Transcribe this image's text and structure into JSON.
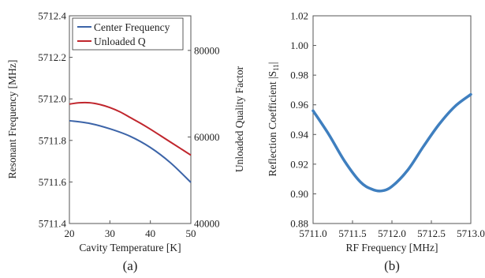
{
  "chart_data": [
    {
      "type": "line",
      "caption": "(a)",
      "xlabel": "Cavity Temperature [K]",
      "ylabel": "Resonant Frequency [MHz]",
      "y2label": "Unloaded Quality Factor",
      "xlim": [
        20,
        50
      ],
      "ylim": [
        5711.4,
        5712.4
      ],
      "y2lim": [
        40000,
        88000
      ],
      "x_ticks": [
        "20",
        "30",
        "40",
        "50"
      ],
      "y_ticks": [
        "5711.4",
        "5711.6",
        "5711.8",
        "5712.0",
        "5712.2",
        "5712.4"
      ],
      "y2_ticks": [
        "40000",
        "60000",
        "80000"
      ],
      "grid": false,
      "legend": "top-left",
      "series": [
        {
          "name": "Center Frequency",
          "axis": "left",
          "color": "#3c64a8",
          "x": [
            20,
            25,
            30,
            35,
            40,
            45,
            50
          ],
          "y": [
            5711.895,
            5711.882,
            5711.856,
            5711.82,
            5711.766,
            5711.692,
            5711.598
          ]
        },
        {
          "name": "Unloaded Q",
          "axis": "right",
          "color": "#c0262d",
          "x": [
            20,
            22.5,
            25,
            27.5,
            30,
            32.5,
            35,
            37.5,
            40,
            42.5,
            45,
            47.5,
            50
          ],
          "y": [
            67600,
            67900,
            67900,
            67500,
            66800,
            65800,
            64500,
            63200,
            61800,
            60300,
            58800,
            57300,
            55800
          ]
        }
      ]
    },
    {
      "type": "line",
      "caption": "(b)",
      "xlabel": "RF Frequency [MHz]",
      "ylabel": "Reflection Coefficient |S11|",
      "xlim": [
        5711.0,
        5713.0
      ],
      "ylim": [
        0.88,
        1.02
      ],
      "x_ticks": [
        "5711.0",
        "5711.5",
        "5712.0",
        "5712.5",
        "5713.0"
      ],
      "y_ticks": [
        "0.88",
        "0.90",
        "0.92",
        "0.94",
        "0.96",
        "0.98",
        "1.00",
        "1.02"
      ],
      "grid": false,
      "series": [
        {
          "color": "#3f7fbf",
          "x": [
            5711.0,
            5711.2,
            5711.4,
            5711.6,
            5711.75,
            5711.87,
            5712.0,
            5712.2,
            5712.4,
            5712.6,
            5712.8,
            5713.0
          ],
          "y": [
            0.956,
            0.94,
            0.922,
            0.908,
            0.903,
            0.902,
            0.905,
            0.916,
            0.932,
            0.947,
            0.959,
            0.967
          ]
        }
      ]
    }
  ]
}
